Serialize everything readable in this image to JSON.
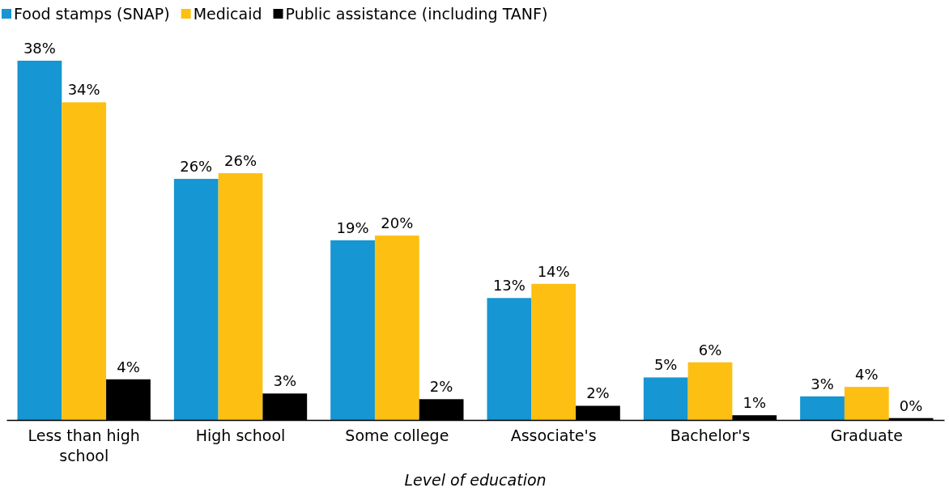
{
  "chart_data": {
    "type": "bar",
    "xlabel": "Level of education",
    "categories": [
      "Less than high school",
      "High school",
      "Some college",
      "Associate's",
      "Bachelor's",
      "Graduate"
    ],
    "series": [
      {
        "name": "Food stamps (SNAP)",
        "color": "#1696d2",
        "values": [
          38,
          25.5,
          19,
          12.9,
          4.5,
          2.5
        ],
        "value_labels": [
          "38%",
          "26%",
          "19%",
          "13%",
          "5%",
          "3%"
        ]
      },
      {
        "name": "Medicaid",
        "color": "#fdbf11",
        "values": [
          33.6,
          26.1,
          19.5,
          14.4,
          6.1,
          3.5
        ],
        "value_labels": [
          "34%",
          "26%",
          "20%",
          "14%",
          "6%",
          "4%"
        ]
      },
      {
        "name": "Public assistance (including TANF)",
        "color": "#000000",
        "values": [
          4.3,
          2.8,
          2.2,
          1.5,
          0.5,
          0.2
        ],
        "value_labels": [
          "4%",
          "3%",
          "2%",
          "2%",
          "1%",
          "0%"
        ]
      }
    ],
    "legend": "top left"
  }
}
